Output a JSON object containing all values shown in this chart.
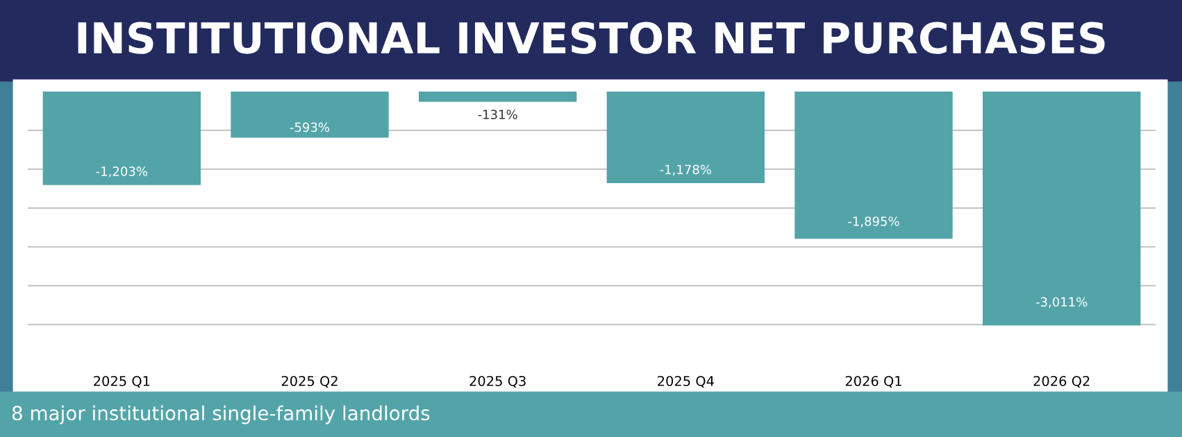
{
  "chart_data": {
    "type": "bar",
    "title": "INSTITUTIONAL INVESTOR NET PURCHASES",
    "categories": [
      "2025 Q1",
      "2025 Q2",
      "2025 Q3",
      "2025 Q4",
      "2026 Q1",
      "2026 Q2"
    ],
    "values": [
      -1203,
      -593,
      -131,
      -1178,
      -1895,
      -3011
    ],
    "value_labels": [
      "-1,203%",
      "-593%",
      "-131%",
      "-1,178%",
      "-1,895%",
      "-3,011%"
    ],
    "color": "#53a4a8",
    "yticks": [
      {
        "value": -500,
        "label": null
      },
      {
        "value": -1000,
        "label": null
      },
      {
        "value": -1500,
        "label": null
      },
      {
        "value": -2000,
        "label": null
      },
      {
        "value": -2500,
        "label": null
      },
      {
        "value": -3000,
        "label": null
      }
    ],
    "grid": "y",
    "tick_labels": "x",
    "annotations": [
      "8 major institutional single-family landlords"
    ]
  }
}
